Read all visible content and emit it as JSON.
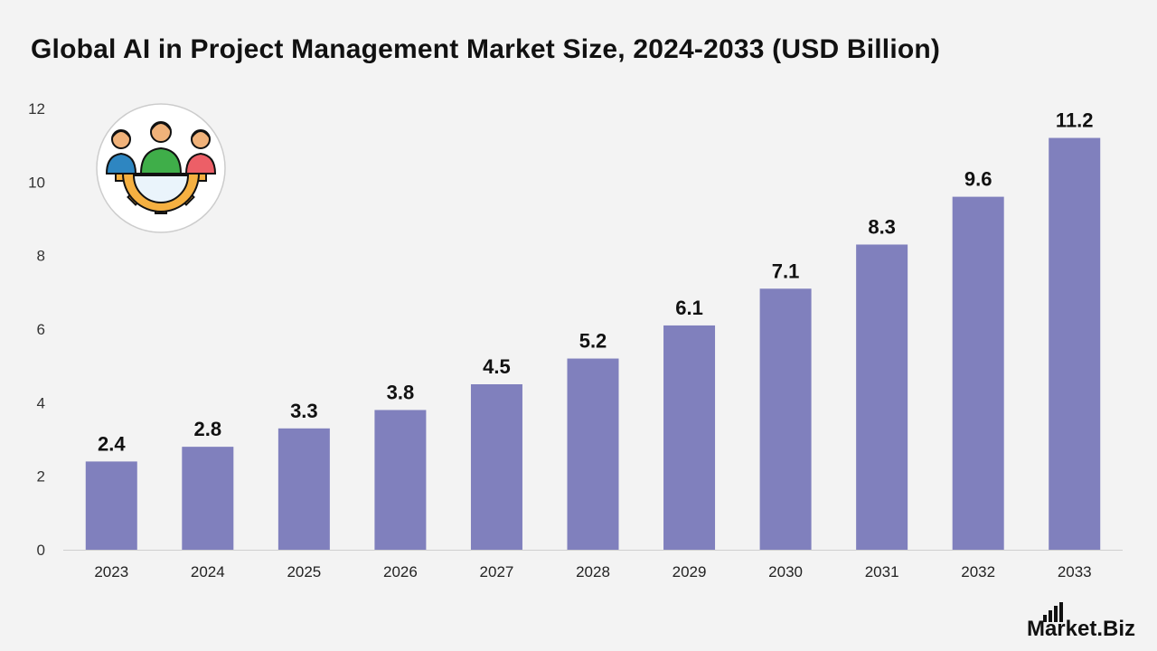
{
  "chart_data": {
    "type": "bar",
    "title": "Global AI in Project Management Market Size, 2024-2033 (USD Billion)",
    "categories": [
      "2023",
      "2024",
      "2025",
      "2026",
      "2027",
      "2028",
      "2029",
      "2030",
      "2031",
      "2032",
      "2033"
    ],
    "values": [
      2.4,
      2.8,
      3.3,
      3.8,
      4.5,
      5.2,
      6.1,
      7.1,
      8.3,
      9.6,
      11.2
    ],
    "value_labels": [
      "2.4",
      "2.8",
      "3.3",
      "3.8",
      "4.5",
      "5.2",
      "6.1",
      "7.1",
      "8.3",
      "9.6",
      "11.2"
    ],
    "ylim": [
      0,
      12
    ],
    "yticks": [
      "0",
      "2",
      "4",
      "6",
      "8",
      "10",
      "12"
    ],
    "xlabel": "",
    "ylabel": "",
    "grid": false,
    "bar_color": "#8080bd"
  },
  "illustration": {
    "icon": "team-gear-icon"
  },
  "branding": {
    "logo_text_main": "Market",
    "logo_text_suffix": ".Biz"
  }
}
